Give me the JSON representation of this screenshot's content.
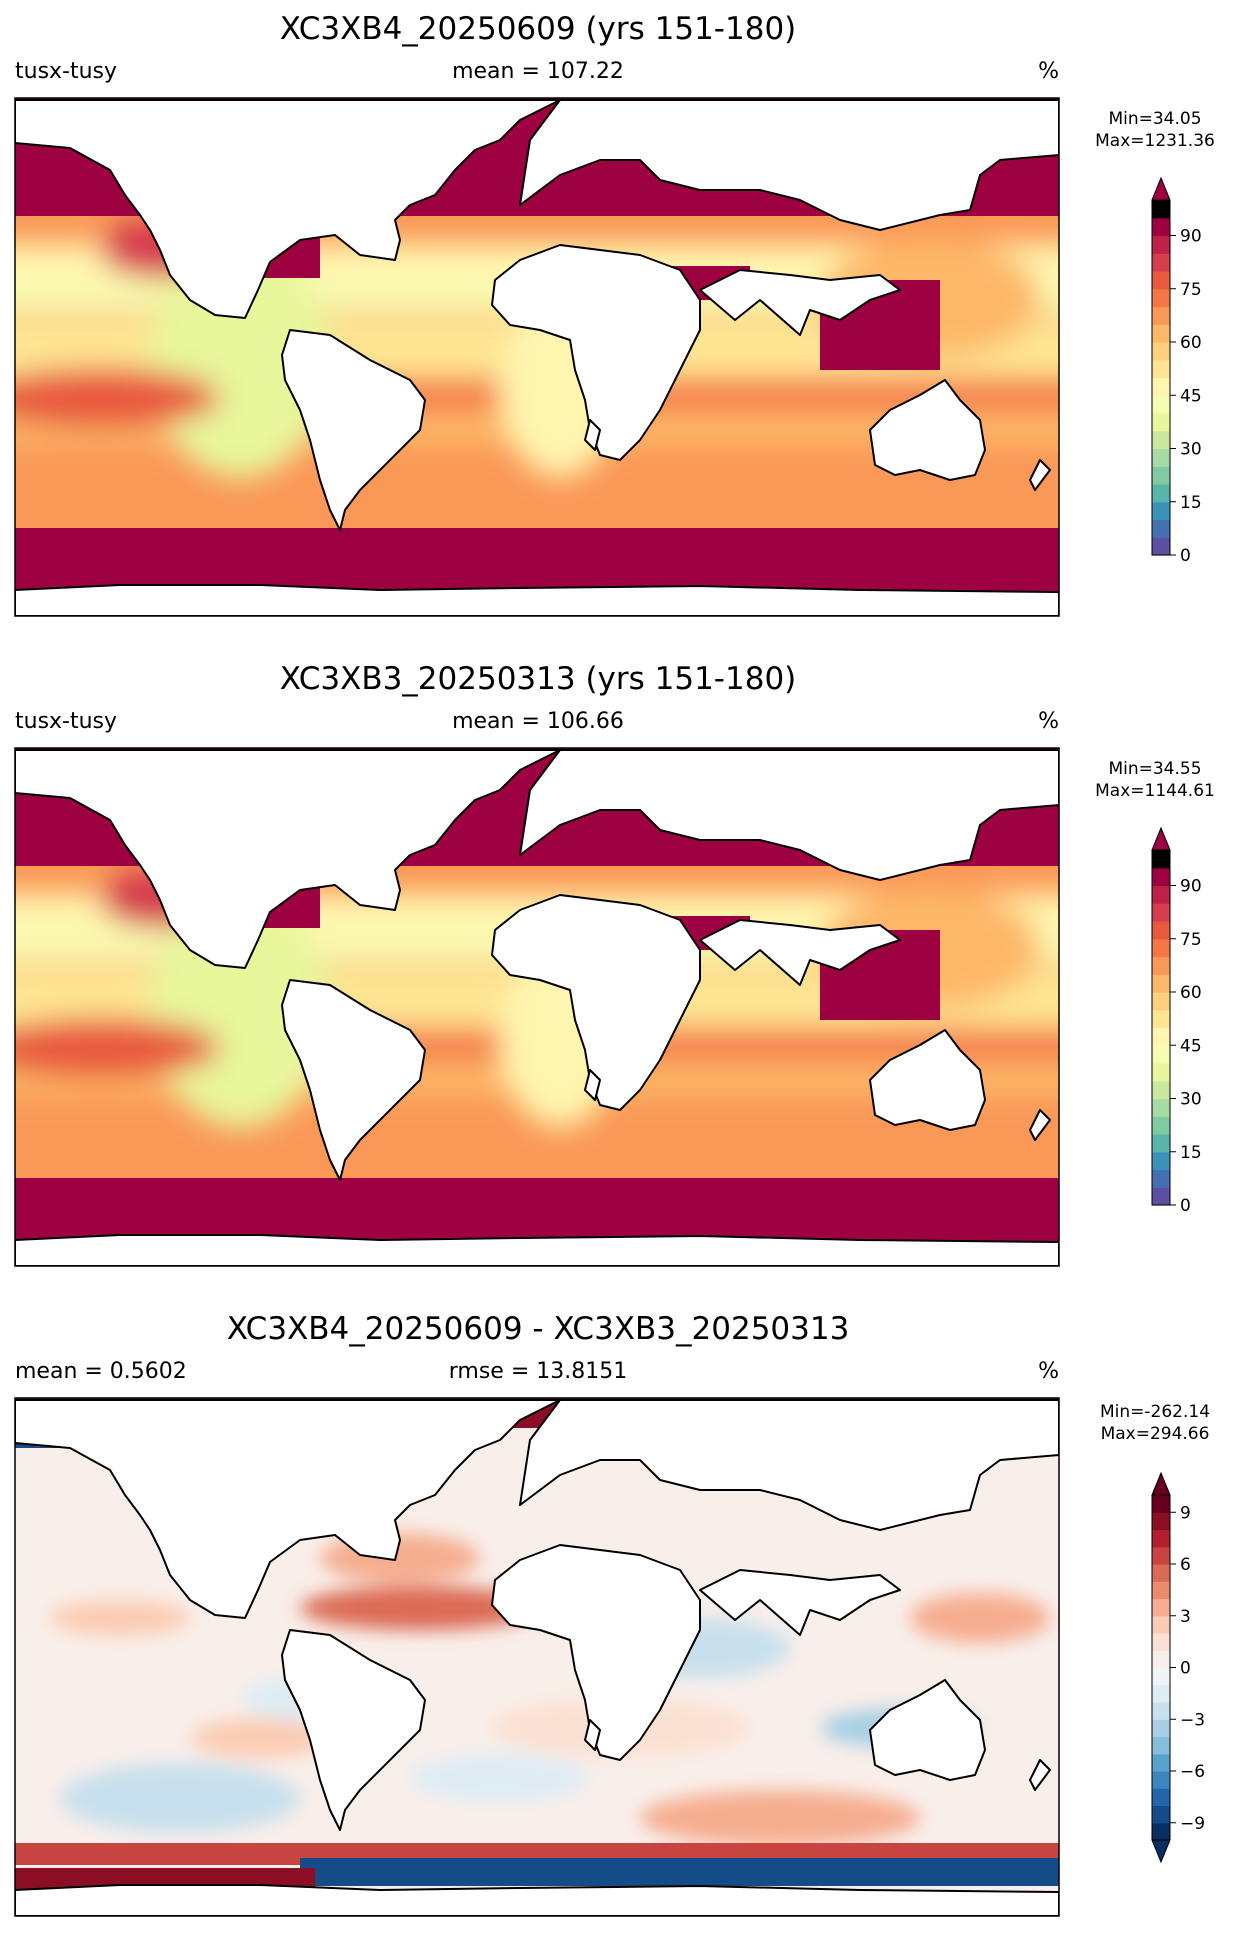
{
  "chart_data": [
    {
      "type": "heatmap",
      "title": "XC3XB4_20250609 (yrs 151-180)",
      "left_label": "tusx-tusy",
      "center_label": "mean = 107.22",
      "right_label": "%",
      "stats": {
        "min": "Min=34.05",
        "max": "Max=1231.36"
      },
      "colorbar": {
        "range": [
          0,
          100
        ],
        "extend": "max",
        "step": 5,
        "ticks": [
          0,
          15,
          30,
          45,
          60,
          75,
          90
        ],
        "tick_labels": [
          "0",
          "15",
          "30",
          "45",
          "60",
          "75",
          "90"
        ],
        "colors": [
          "#5e4fa2",
          "#4470b1",
          "#3b92b8",
          "#59b4aa",
          "#7ecba4",
          "#a6dba4",
          "#cae99d",
          "#e8f69c",
          "#f7fcb3",
          "#fff5ae",
          "#fee593",
          "#fdd07d",
          "#fdb768",
          "#fa9857",
          "#f57748",
          "#e8593d",
          "#d53e4f",
          "#be2249",
          "#9e0142"
        ]
      },
      "map": {
        "projection": "plate carree",
        "palette": "spectral",
        "mean": 107.22
      }
    },
    {
      "type": "heatmap",
      "title": "XC3XB3_20250313 (yrs 151-180)",
      "left_label": "tusx-tusy",
      "center_label": "mean = 106.66",
      "right_label": "%",
      "stats": {
        "min": "Min=34.55",
        "max": "Max=1144.61"
      },
      "colorbar": {
        "range": [
          0,
          100
        ],
        "extend": "max",
        "step": 5,
        "ticks": [
          0,
          15,
          30,
          45,
          60,
          75,
          90
        ],
        "tick_labels": [
          "0",
          "15",
          "30",
          "45",
          "60",
          "75",
          "90"
        ],
        "colors": [
          "#5e4fa2",
          "#4470b1",
          "#3b92b8",
          "#59b4aa",
          "#7ecba4",
          "#a6dba4",
          "#cae99d",
          "#e8f69c",
          "#f7fcb3",
          "#fff5ae",
          "#fee593",
          "#fdd07d",
          "#fdb768",
          "#fa9857",
          "#f57748",
          "#e8593d",
          "#d53e4f",
          "#be2249",
          "#9e0142"
        ]
      },
      "map": {
        "projection": "plate carree",
        "palette": "spectral",
        "mean": 106.66
      }
    },
    {
      "type": "heatmap",
      "title": "XC3XB4_20250609 - XC3XB3_20250313",
      "left_label": "mean = 0.5602",
      "center_label": "rmse = 13.8151",
      "right_label": "%",
      "stats": {
        "min": "Min=-262.14",
        "max": "Max=294.66"
      },
      "colorbar": {
        "range": [
          -10,
          10
        ],
        "extend": "both",
        "step": 1,
        "ticks": [
          -9,
          -6,
          -3,
          0,
          3,
          6,
          9
        ],
        "tick_labels": [
          "−9",
          "−6",
          "−3",
          "0",
          "3",
          "6",
          "9"
        ],
        "colors": [
          "#053061",
          "#134c87",
          "#2166ac",
          "#3a87bd",
          "#5aa1cb",
          "#86bdda",
          "#a9cfe4",
          "#c7e0ed",
          "#dfecf4",
          "#eff4f8",
          "#f9efea",
          "#fbe1d3",
          "#fbccb4",
          "#f6ad90",
          "#ea8b6e",
          "#db6b55",
          "#c84441",
          "#b41f2e",
          "#8b0e25",
          "#67001f"
        ]
      },
      "map": {
        "projection": "plate carree",
        "palette": "red-blue",
        "mean": 0.5602
      }
    }
  ]
}
